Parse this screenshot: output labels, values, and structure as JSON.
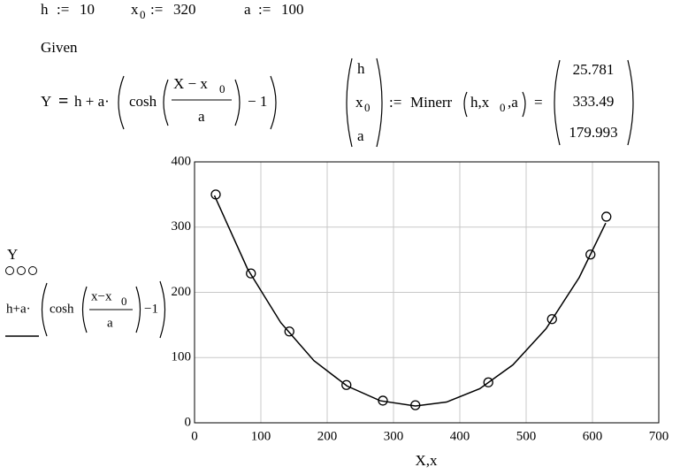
{
  "worksheet": {
    "defs": [
      {
        "var": "h",
        "op": ":=",
        "val": 10
      },
      {
        "var": "x",
        "sub": "0",
        "op": ":=",
        "val": 320
      },
      {
        "var": "a",
        "op": ":=",
        "val": 100
      }
    ],
    "given": "Given",
    "constraint": {
      "lhs": "Y",
      "eq": "=",
      "pre": "h + a·",
      "fn": "cosh",
      "num": "X − x",
      "num_sub": "0",
      "den": "a",
      "post": "− 1"
    },
    "minerr": {
      "vector": [
        "h",
        "x",
        "a"
      ],
      "vector_sub": "0",
      "op": ":=",
      "call": "Minerr",
      "args": "h,x",
      "args_sub": "0",
      "args_end": ",a",
      "eq": "=",
      "results": [
        25.781,
        333.49,
        179.993
      ]
    }
  },
  "chart_data": {
    "type": "scatter",
    "x_label": "X,x",
    "y_label": {
      "top": "Y",
      "pre": "h+a·",
      "fn": "cosh",
      "num": "x−x",
      "num_sub": "0",
      "den": "a",
      "post": "−1"
    },
    "xlim": [
      0,
      700
    ],
    "ylim": [
      0,
      400
    ],
    "xticks": [
      0,
      100,
      200,
      300,
      400,
      500,
      600,
      700
    ],
    "yticks": [
      0,
      100,
      200,
      300,
      400
    ],
    "grid": true,
    "series": [
      {
        "style": "markers",
        "color": "#000000",
        "x": [
          32,
          85,
          143,
          229,
          284,
          333,
          443,
          539,
          597,
          621
        ],
        "values": [
          350,
          229,
          140,
          58,
          34,
          27,
          62,
          159,
          258,
          316
        ]
      },
      {
        "style": "line",
        "color": "#000000",
        "x": [
          30,
          80,
          130,
          180,
          230,
          280,
          333,
          380,
          430,
          480,
          530,
          580,
          620
        ],
        "values": [
          348.4,
          235.8,
          153.6,
          95.3,
          56.4,
          33.8,
          25.8,
          31.8,
          52.3,
          88.8,
          144.2,
          222.7,
          306.2
        ]
      }
    ]
  }
}
